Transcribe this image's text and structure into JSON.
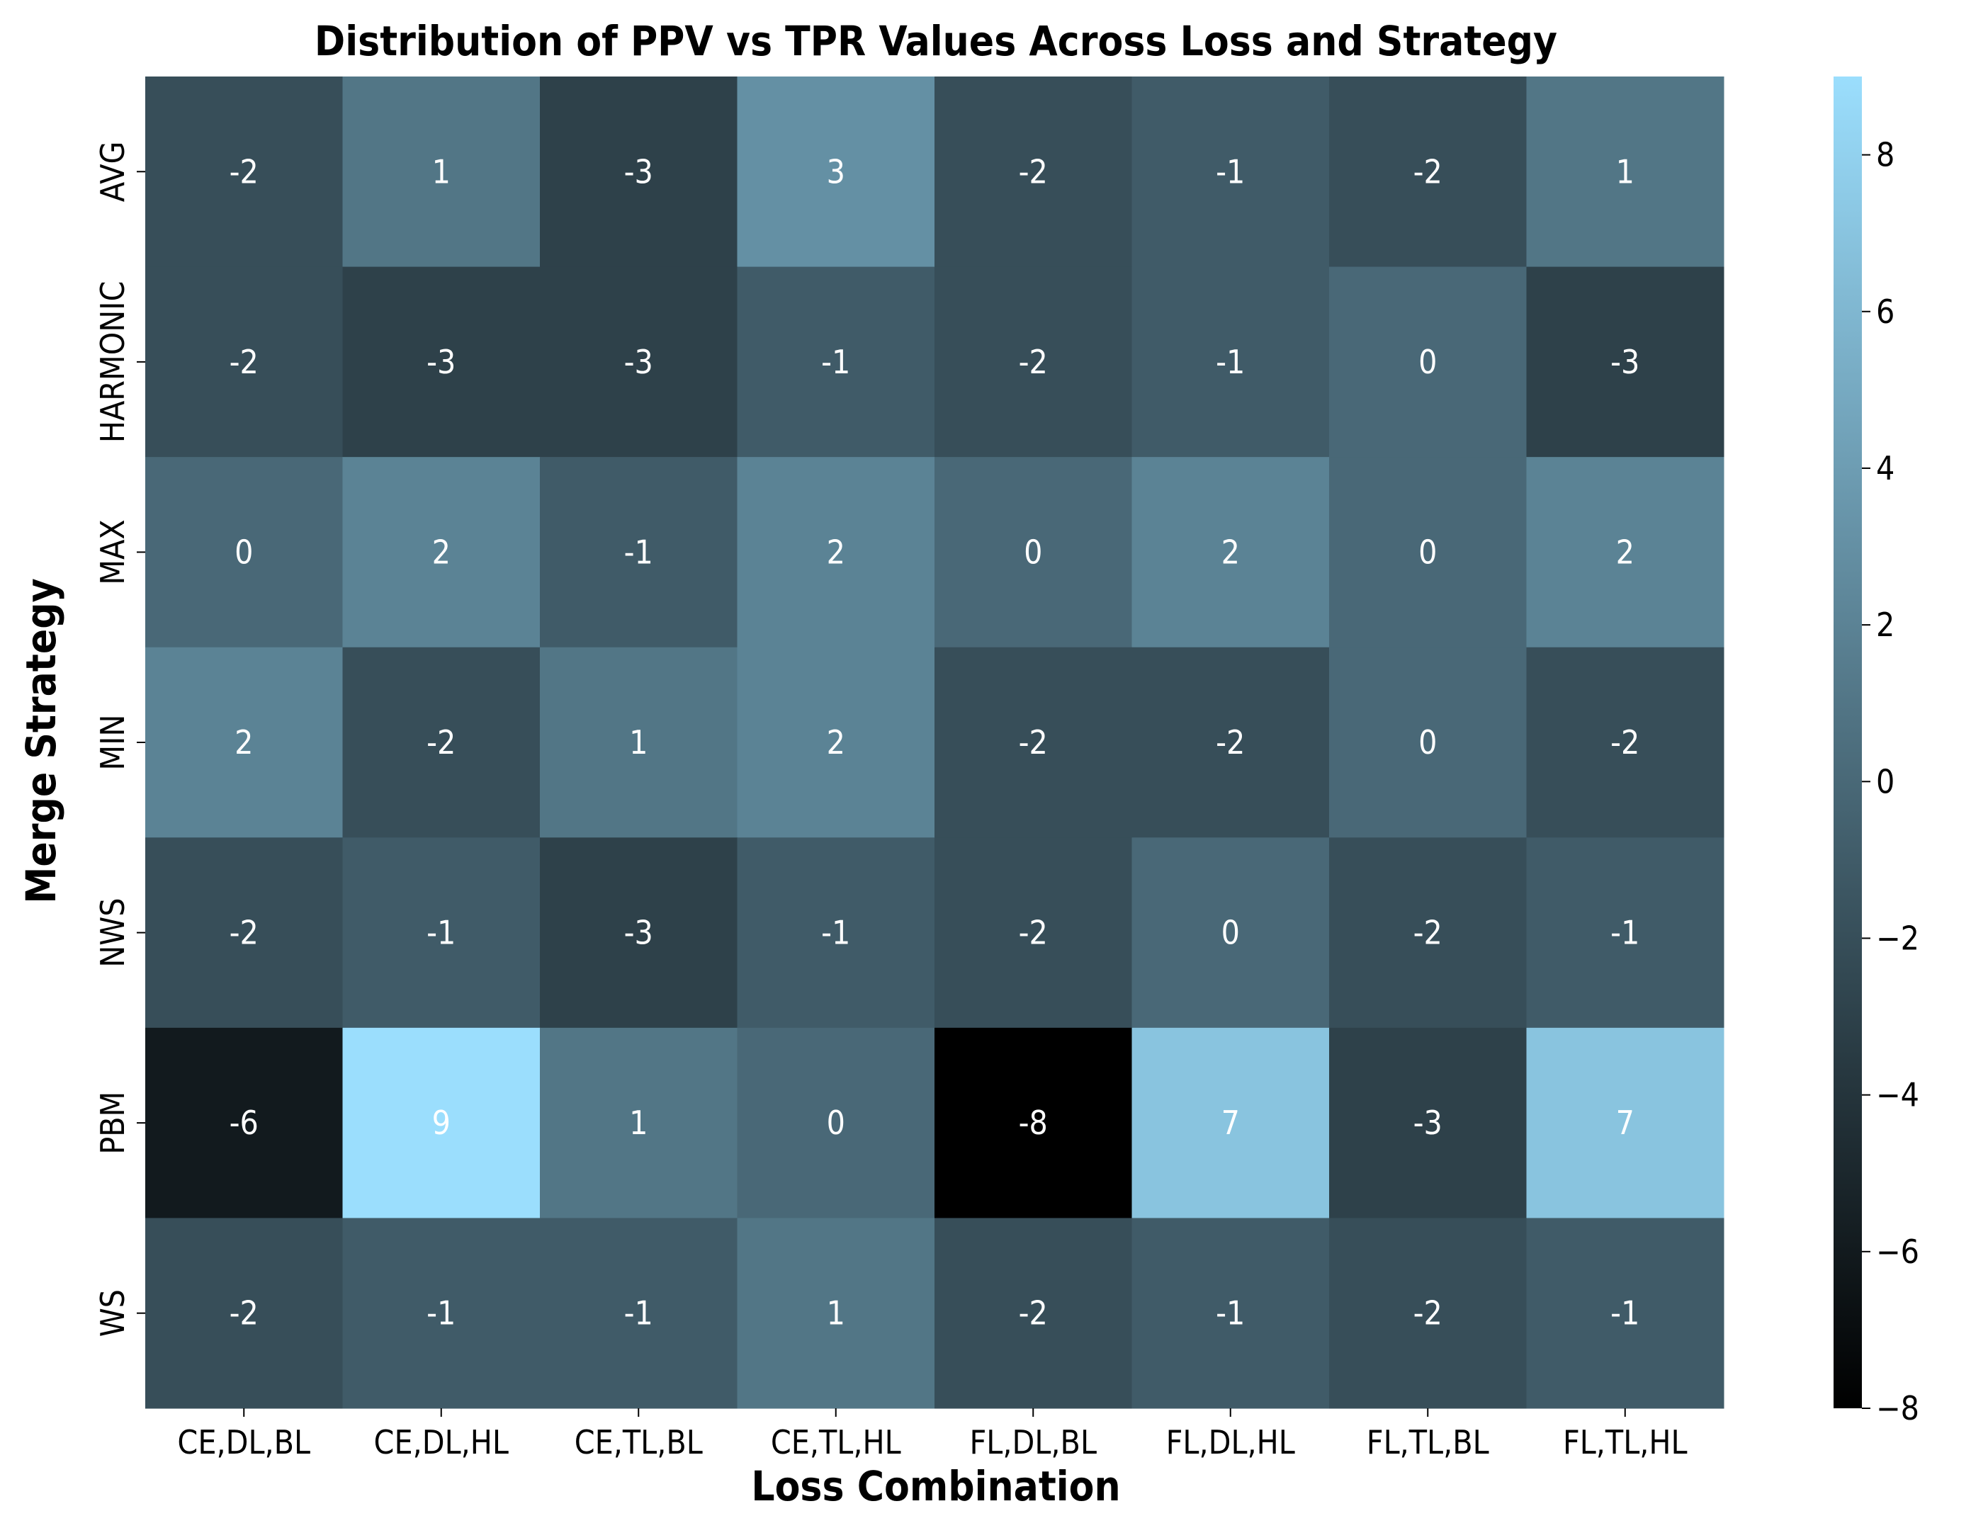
{
  "chart_data": {
    "type": "heatmap",
    "title": "Distribution of PPV vs TPR Values Across Loss and Strategy",
    "xlabel": "Loss Combination",
    "ylabel": "Merge Strategy",
    "x_categories": [
      "CE,DL,BL",
      "CE,DL,HL",
      "CE,TL,BL",
      "CE,TL,HL",
      "FL,DL,BL",
      "FL,DL,HL",
      "FL,TL,BL",
      "FL,TL,HL"
    ],
    "y_categories": [
      "AVG",
      "HARMONIC",
      "MAX",
      "MIN",
      "NWS",
      "PBM",
      "WS"
    ],
    "values": [
      [
        -2,
        1,
        -3,
        3,
        -2,
        -1,
        -2,
        1
      ],
      [
        -2,
        -3,
        -3,
        -1,
        -2,
        -1,
        0,
        -3
      ],
      [
        0,
        2,
        -1,
        2,
        0,
        2,
        0,
        2
      ],
      [
        2,
        -2,
        1,
        2,
        -2,
        -2,
        0,
        -2
      ],
      [
        -2,
        -1,
        -3,
        -1,
        -2,
        0,
        -2,
        -1
      ],
      [
        -6,
        9,
        1,
        0,
        -8,
        7,
        -3,
        7
      ],
      [
        -2,
        -1,
        -1,
        1,
        -2,
        -1,
        -2,
        -1
      ]
    ],
    "value_labels": [
      [
        "-2",
        "1",
        "-3",
        "3",
        "-2",
        "-1",
        "-2",
        "1"
      ],
      [
        "-2",
        "-3",
        "-3",
        "-1",
        "-2",
        "-1",
        "0",
        "-3"
      ],
      [
        "0",
        "2",
        "-1",
        "2",
        "0",
        "2",
        "0",
        "2"
      ],
      [
        "2",
        "-2",
        "1",
        "2",
        "-2",
        "-2",
        "0",
        "-2"
      ],
      [
        "-2",
        "-1",
        "-3",
        "-1",
        "-2",
        "0",
        "-2",
        "-1"
      ],
      [
        "-6",
        "9",
        "1",
        "0",
        "-8",
        "7",
        "-3",
        "7"
      ],
      [
        "-2",
        "-1",
        "-1",
        "1",
        "-2",
        "-1",
        "-2",
        "-1"
      ]
    ],
    "colorbar": {
      "min": -8,
      "max": 9,
      "ticks": [
        -8,
        -6,
        -4,
        -2,
        0,
        2,
        4,
        6,
        8
      ],
      "tick_labels": [
        "−8",
        "−6",
        "−4",
        "−2",
        "0",
        "2",
        "4",
        "6",
        "8"
      ],
      "color_low": "#000000",
      "color_high": "#9bdefd"
    },
    "grid": false
  }
}
